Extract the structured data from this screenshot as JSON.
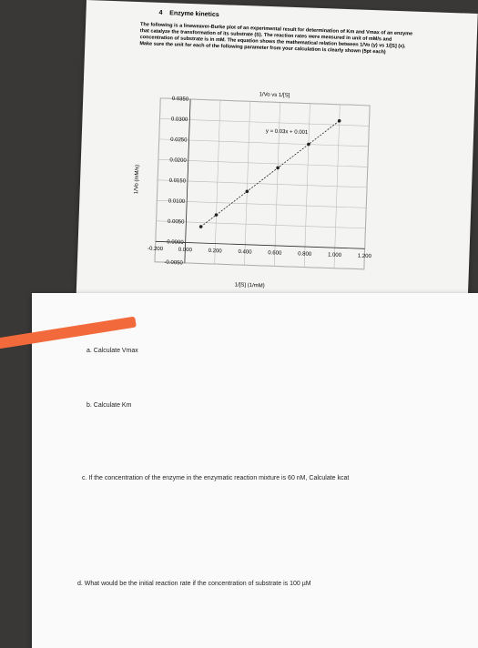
{
  "header": {
    "number": "4",
    "title": "Enzyme kinetics"
  },
  "intro": "The following is a lineweaver-Burke plot of an experimental result for determination of Km and Vmax of an enzyme that catalyze the transformation of its substrate (S). The reaction rates were measured in unit of mM/s and concentration of substrate is in mM. The equation shows the mathematical relation between 1/Vo (y) vs 1/[S] (x). Make sure the unit for each of the following parameter from your calculation is clearly shown (5pt each)",
  "chart_data": {
    "type": "scatter",
    "title": "1/Vo vs 1/[S]",
    "annotation": "y = 0.03x + 0.001",
    "x_label": "1/[S] (1/mM)",
    "y_label": "1/Vo (mM/s)",
    "x": [
      0.1,
      0.2,
      0.4,
      0.6,
      0.8,
      1.0
    ],
    "y": [
      0.004,
      0.007,
      0.013,
      0.019,
      0.025,
      0.031
    ],
    "color": "#222222",
    "grid": true,
    "xlim": [
      -0.2,
      1.2
    ],
    "ylim": [
      -0.005,
      0.035
    ],
    "xticks": [
      {
        "value": -0.2,
        "label": "-0.200"
      },
      {
        "value": 0,
        "label": "0.000"
      },
      {
        "value": 0.2,
        "label": "0.200"
      },
      {
        "value": 0.4,
        "label": "0.400"
      },
      {
        "value": 0.6,
        "label": "0.600"
      },
      {
        "value": 0.8,
        "label": "0.800"
      },
      {
        "value": 1.0,
        "label": "1.000"
      },
      {
        "value": 1.2,
        "label": "1.200"
      }
    ],
    "yticks": [
      {
        "value": -0.005,
        "label": "-0.0050"
      },
      {
        "value": 0,
        "label": "0.0000"
      },
      {
        "value": 0.005,
        "label": "0.0050"
      },
      {
        "value": 0.01,
        "label": "0.0100"
      },
      {
        "value": 0.015,
        "label": "0.0150"
      },
      {
        "value": 0.02,
        "label": "0.0200"
      },
      {
        "value": 0.025,
        "label": "0.0250"
      },
      {
        "value": 0.03,
        "label": "0.0300"
      },
      {
        "value": 0.035,
        "label": "0.0350"
      }
    ]
  },
  "questions": [
    "a. Calculate Vmax",
    "b. Calculate Km",
    "c. If the concentration of the enzyme in the enzymatic reaction mixture is 60 nM, Calculate kcat",
    "d. What would be the initial reaction rate if the concentration of substrate is 100 µM"
  ]
}
